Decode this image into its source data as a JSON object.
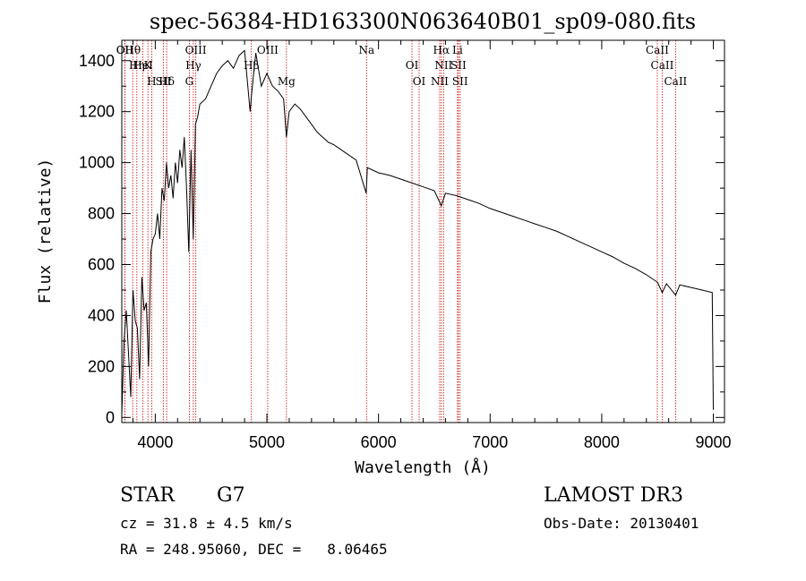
{
  "chart_data": {
    "type": "line",
    "title": "spec-56384-HD163300N063640B01_sp09-080.fits",
    "xlabel": "Wavelength (Å)",
    "ylabel": "Flux (relative)",
    "xlim": [
      3700,
      9100
    ],
    "ylim": [
      -20,
      1480
    ],
    "xticks": [
      4000,
      5000,
      6000,
      7000,
      8000,
      9000
    ],
    "yticks": [
      0,
      200,
      400,
      600,
      800,
      1000,
      1200,
      1400
    ],
    "series": [
      {
        "x": [
          3700,
          3720,
          3740,
          3760,
          3780,
          3800,
          3820,
          3840,
          3860,
          3880,
          3900,
          3920,
          3940,
          3960,
          3980,
          4000,
          4020,
          4040,
          4060,
          4080,
          4100,
          4120,
          4140,
          4160,
          4180,
          4200,
          4220,
          4240,
          4260,
          4280,
          4300,
          4320,
          4340,
          4360,
          4380,
          4400,
          4450,
          4500,
          4550,
          4600,
          4650,
          4700,
          4750,
          4800,
          4850,
          4861,
          4900,
          4950,
          5000,
          5050,
          5100,
          5150,
          5175,
          5200,
          5250,
          5300,
          5350,
          5400,
          5450,
          5500,
          5550,
          5600,
          5700,
          5800,
          5890,
          5900,
          6000,
          6100,
          6200,
          6300,
          6400,
          6500,
          6563,
          6600,
          6700,
          6800,
          6900,
          7000,
          7100,
          7200,
          7300,
          7400,
          7500,
          7600,
          7700,
          7800,
          7900,
          8000,
          8100,
          8200,
          8300,
          8400,
          8500,
          8542,
          8580,
          8662,
          8700,
          8800,
          8900,
          8990,
          9000
        ],
        "y": [
          10,
          300,
          420,
          250,
          80,
          500,
          380,
          350,
          150,
          550,
          420,
          450,
          200,
          650,
          700,
          720,
          800,
          700,
          900,
          850,
          1000,
          900,
          950,
          860,
          1000,
          920,
          1050,
          980,
          1100,
          900,
          650,
          1050,
          700,
          1150,
          1180,
          1230,
          1250,
          1300,
          1350,
          1380,
          1400,
          1370,
          1420,
          1440,
          1200,
          1260,
          1430,
          1300,
          1350,
          1300,
          1280,
          1250,
          1100,
          1200,
          1230,
          1210,
          1180,
          1150,
          1120,
          1100,
          1080,
          1070,
          1040,
          1010,
          880,
          980,
          960,
          950,
          935,
          920,
          905,
          890,
          830,
          880,
          870,
          855,
          840,
          820,
          805,
          790,
          775,
          760,
          745,
          730,
          710,
          690,
          670,
          650,
          630,
          605,
          585,
          560,
          530,
          490,
          525,
          480,
          520,
          510,
          500,
          490,
          30
        ]
      }
    ],
    "lines": [
      {
        "label": "Hθ",
        "x": 3798
      },
      {
        "label": "K",
        "x": 3934
      },
      {
        "label": "Hδ",
        "x": 4102
      },
      {
        "label": "OII",
        "x": 3727
      },
      {
        "label": "HeI",
        "x": 3889
      },
      {
        "label": "SII",
        "x": 4072
      },
      {
        "label": "OII",
        "x": 3727
      },
      {
        "label": "Hη",
        "x": 3835
      },
      {
        "label": "H",
        "x": 3968
      },
      {
        "label": "OIII",
        "x": 4363
      },
      {
        "label": "Hγ",
        "x": 4341
      },
      {
        "label": "G",
        "x": 4305
      },
      {
        "label": "OIII",
        "x": 5007
      },
      {
        "label": "Hβ",
        "x": 4861
      },
      {
        "label": "Mg",
        "x": 5175
      },
      {
        "label": "Na",
        "x": 5893
      },
      {
        "label": "OI",
        "x": 6300
      },
      {
        "label": "OI",
        "x": 6364
      },
      {
        "label": "Hα",
        "x": 6563
      },
      {
        "label": "SII",
        "x": 6716
      },
      {
        "label": "NII",
        "x": 6548
      },
      {
        "label": "Li",
        "x": 6708
      },
      {
        "label": "NII",
        "x": 6583
      },
      {
        "label": "SII",
        "x": 6731
      },
      {
        "label": "CaII",
        "x": 8498
      },
      {
        "label": "CaII",
        "x": 8542
      },
      {
        "label": "CaII",
        "x": 8662
      }
    ],
    "grid": false,
    "legend": "none"
  },
  "info": {
    "object_class": "STAR",
    "subclass": "G7",
    "cz": "cz = 31.8 ± 4.5 km/s",
    "coords": "RA = 248.95060, DEC =   8.06465",
    "survey": "LAMOST DR3",
    "obs_date": "Obs-Date: 20130401"
  },
  "colors": {
    "spectrum": "#000000",
    "line_markers": "#cc0000",
    "axes": "#000000"
  }
}
